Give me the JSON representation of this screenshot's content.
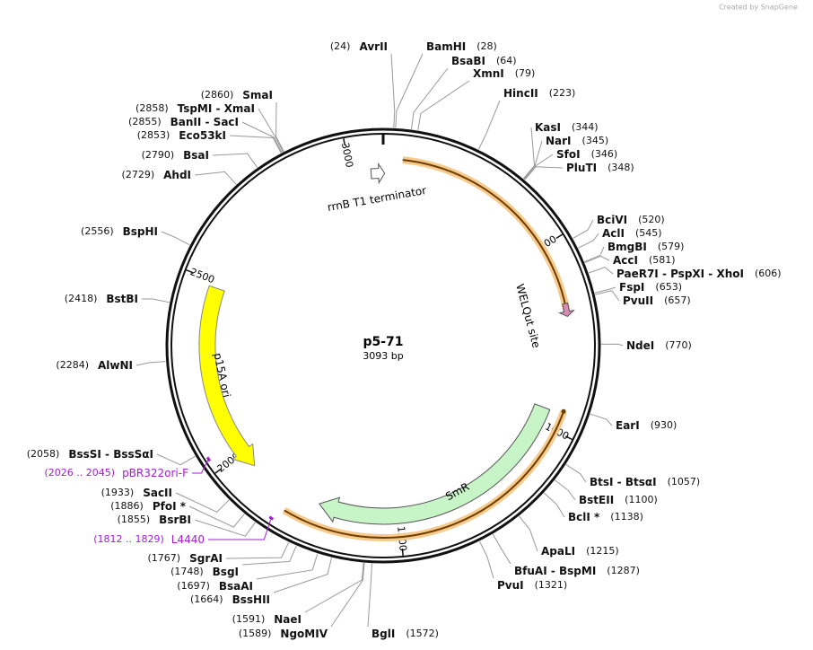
{
  "credit": "Created by SnapGene",
  "map": {
    "name": "p5-71",
    "length_label": "3093 bp",
    "length": 3093,
    "ruler": [
      500,
      1000,
      1500,
      2000,
      2500,
      3000
    ]
  },
  "sites": [
    {
      "name": "AvrII",
      "position": 24,
      "position_label": "(24)"
    },
    {
      "name": "BamHI",
      "position": 28,
      "position_label": "(28)"
    },
    {
      "name": "BsaBI",
      "position": 64,
      "position_label": "(64)"
    },
    {
      "name": "XmnI",
      "position": 79,
      "position_label": "(79)"
    },
    {
      "name": "HincII",
      "position": 223,
      "position_label": "(223)"
    },
    {
      "name": "KasI",
      "position": 344,
      "position_label": "(344)"
    },
    {
      "name": "NarI",
      "position": 345,
      "position_label": "(345)"
    },
    {
      "name": "SfoI",
      "position": 346,
      "position_label": "(346)"
    },
    {
      "name": "PluTI",
      "position": 348,
      "position_label": "(348)"
    },
    {
      "name": "BciVI",
      "position": 520,
      "position_label": "(520)"
    },
    {
      "name": "AclI",
      "position": 545,
      "position_label": "(545)"
    },
    {
      "name": "BmgBI",
      "position": 579,
      "position_label": "(579)"
    },
    {
      "name": "AccI",
      "position": 581,
      "position_label": "(581)"
    },
    {
      "name": "PaeR7I - PspXI - XhoI",
      "position": 606,
      "position_label": "(606)"
    },
    {
      "name": "FspI",
      "position": 653,
      "position_label": "(653)"
    },
    {
      "name": "PvuII",
      "position": 657,
      "position_label": "(657)"
    },
    {
      "name": "NdeI",
      "position": 770,
      "position_label": "(770)"
    },
    {
      "name": "EarI",
      "position": 930,
      "position_label": "(930)"
    },
    {
      "name": "BtsI - BtsαI",
      "position": 1057,
      "position_label": "(1057)"
    },
    {
      "name": "BstEII",
      "position": 1100,
      "position_label": "(1100)"
    },
    {
      "name": "BclI *",
      "position": 1138,
      "position_label": "(1138)"
    },
    {
      "name": "ApaLI",
      "position": 1215,
      "position_label": "(1215)"
    },
    {
      "name": "BfuAI - BspMI",
      "position": 1287,
      "position_label": "(1287)"
    },
    {
      "name": "PvuI",
      "position": 1321,
      "position_label": "(1321)"
    },
    {
      "name": "BglI",
      "position": 1572,
      "position_label": "(1572)"
    },
    {
      "name": "NgoMIV",
      "position": 1589,
      "position_label": "(1589)"
    },
    {
      "name": "NaeI",
      "position": 1591,
      "position_label": "(1591)"
    },
    {
      "name": "BssHII",
      "position": 1664,
      "position_label": "(1664)"
    },
    {
      "name": "BsaAI",
      "position": 1697,
      "position_label": "(1697)"
    },
    {
      "name": "BsgI",
      "position": 1748,
      "position_label": "(1748)"
    },
    {
      "name": "SgrAI",
      "position": 1767,
      "position_label": "(1767)"
    },
    {
      "name": "BsrBI",
      "position": 1855,
      "position_label": "(1855)"
    },
    {
      "name": "PfoI *",
      "position": 1886,
      "position_label": "(1886)"
    },
    {
      "name": "SacII",
      "position": 1933,
      "position_label": "(1933)"
    },
    {
      "name": "BssSI - BssSαI",
      "position": 2058,
      "position_label": "(2058)"
    },
    {
      "name": "AlwNI",
      "position": 2284,
      "position_label": "(2284)"
    },
    {
      "name": "BstBI",
      "position": 2418,
      "position_label": "(2418)"
    },
    {
      "name": "BspHI",
      "position": 2556,
      "position_label": "(2556)"
    },
    {
      "name": "AhdI",
      "position": 2729,
      "position_label": "(2729)"
    },
    {
      "name": "BsaI",
      "position": 2790,
      "position_label": "(2790)"
    },
    {
      "name": "Eco53kI",
      "position": 2853,
      "position_label": "(2853)"
    },
    {
      "name": "BanII - SacI",
      "position": 2855,
      "position_label": "(2855)"
    },
    {
      "name": "TspMI - XmaI",
      "position": 2858,
      "position_label": "(2858)"
    },
    {
      "name": "SmaI",
      "position": 2860,
      "position_label": "(2860)"
    }
  ],
  "features": [
    {
      "name": "rrnB T1 terminator"
    },
    {
      "name": "WELQut site"
    },
    {
      "name": "SmR"
    },
    {
      "name": "p15A ori"
    }
  ],
  "primers": [
    {
      "name": "pBR322ori-F",
      "range": "(2026 .. 2045)"
    },
    {
      "name": "L4440",
      "range": "(1812 .. 1829)"
    }
  ]
}
